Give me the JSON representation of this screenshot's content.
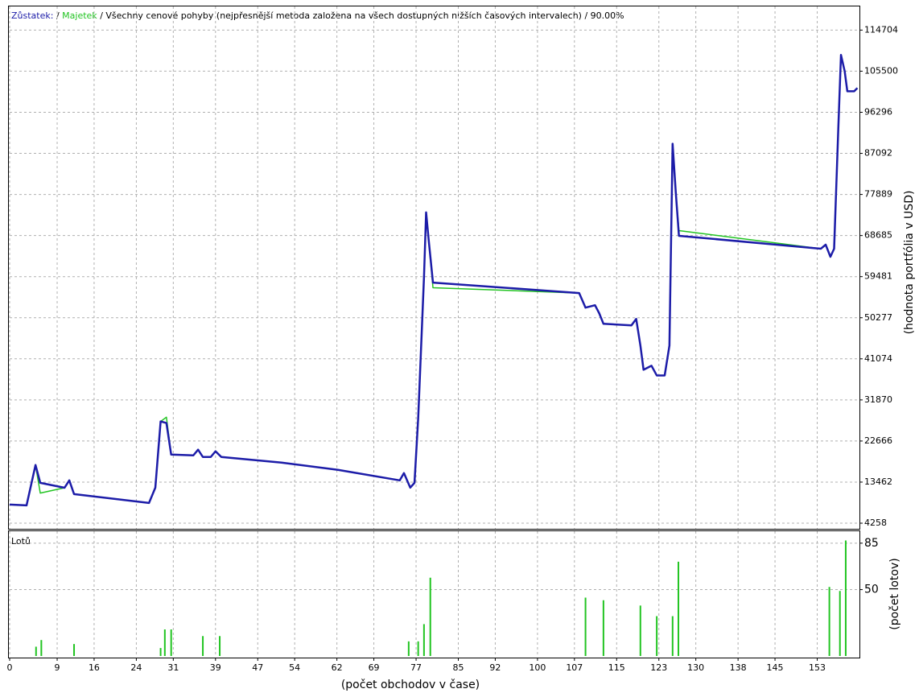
{
  "chart_data": [
    {
      "type": "line",
      "legend": [
        "Zůstatek:",
        "Majetek"
      ],
      "separator": "/",
      "title": "Všechny cenové pohyby (nejpřesnější metoda založena na všech dostupných nižších časových intervalech) / 90.00%",
      "ylabel": "(hodnota portfólia v USD)",
      "xlim": [
        0,
        161
      ],
      "ylim": [
        3000,
        120000
      ],
      "yticks": [
        4258,
        13462,
        22666,
        31870,
        41074,
        50277,
        59481,
        68685,
        77889,
        87092,
        96296,
        105500,
        114704
      ],
      "grid": true,
      "x": [
        0,
        3.2,
        4.9,
        5.8,
        10.4,
        11.3,
        12.2,
        26.4,
        27.6,
        28.6,
        29.7,
        30.6,
        34.8,
        35.7,
        36.6,
        38.1,
        39,
        40.1,
        51.5,
        62.2,
        73.9,
        74.7,
        75.9,
        76.7,
        77.4,
        78.5,
        78.9,
        79.4,
        80.2,
        107.9,
        109.1,
        110.9,
        111.7,
        112.5,
        117.8,
        118.7,
        119.5,
        120.1,
        121.6,
        122.6,
        124.1,
        125,
        125.6,
        126.2,
        126.8,
        153.7,
        154.6,
        155.5,
        156.2,
        157,
        157.5,
        158.2,
        158.7,
        160,
        160.6
      ],
      "series": [
        {
          "name": "Majetek",
          "color": "#22c422",
          "values": [
            8424,
            8243,
            17283,
            11000,
            12200,
            13850,
            10775,
            8786,
            12220,
            27050,
            28000,
            19630,
            19450,
            20720,
            19090,
            19090,
            20360,
            19090,
            17830,
            16200,
            13850,
            15480,
            12220,
            13300,
            27770,
            59410,
            73870,
            67550,
            57000,
            55800,
            52540,
            53080,
            51270,
            48920,
            48560,
            50010,
            44040,
            38620,
            39520,
            37350,
            37350,
            44040,
            89250,
            78400,
            69800,
            65740,
            66640,
            63930,
            65740,
            92860,
            109130,
            105510,
            101000,
            101000,
            101720
          ]
        },
        {
          "name": "Zůstatek:",
          "color": "#1c1ca8",
          "values": [
            8424,
            8243,
            17283,
            13300,
            12200,
            13850,
            10775,
            8786,
            12220,
            27050,
            26690,
            19630,
            19450,
            20720,
            19090,
            19090,
            20360,
            19090,
            17830,
            16200,
            13850,
            15480,
            12220,
            13300,
            27770,
            59410,
            73870,
            67550,
            58140,
            55800,
            52540,
            53080,
            51270,
            48920,
            48560,
            50010,
            44040,
            38620,
            39520,
            37350,
            37350,
            44040,
            89250,
            78400,
            68630,
            65740,
            66640,
            63930,
            65740,
            92860,
            109130,
            105510,
            101000,
            101000,
            101720
          ]
        }
      ]
    },
    {
      "type": "bar",
      "label": "Lotů",
      "ylabel": "(počet lotov)",
      "xlabel": "(počet obchodov v čase)",
      "xlim": [
        0,
        161
      ],
      "xticks": [
        0,
        9,
        16,
        24,
        31,
        39,
        47,
        54,
        62,
        69,
        77,
        85,
        92,
        100,
        107,
        115,
        123,
        130,
        138,
        145,
        153
      ],
      "ylim": [
        0,
        94
      ],
      "yticks": [
        50,
        85
      ],
      "grid": true,
      "color": "#22c422",
      "x": [
        5,
        6,
        12.2,
        28.6,
        29.4,
        30.6,
        36.6,
        39.8,
        75.6,
        77.4,
        78.5,
        79.7,
        109.1,
        112.5,
        119.5,
        122.6,
        125.6,
        126.7,
        155.3,
        157.3,
        158.4
      ],
      "values": [
        7,
        12,
        9,
        6,
        20,
        20,
        15,
        15,
        11,
        11,
        24,
        59,
        44,
        42,
        38,
        30,
        30,
        71,
        52,
        49,
        87
      ]
    }
  ]
}
